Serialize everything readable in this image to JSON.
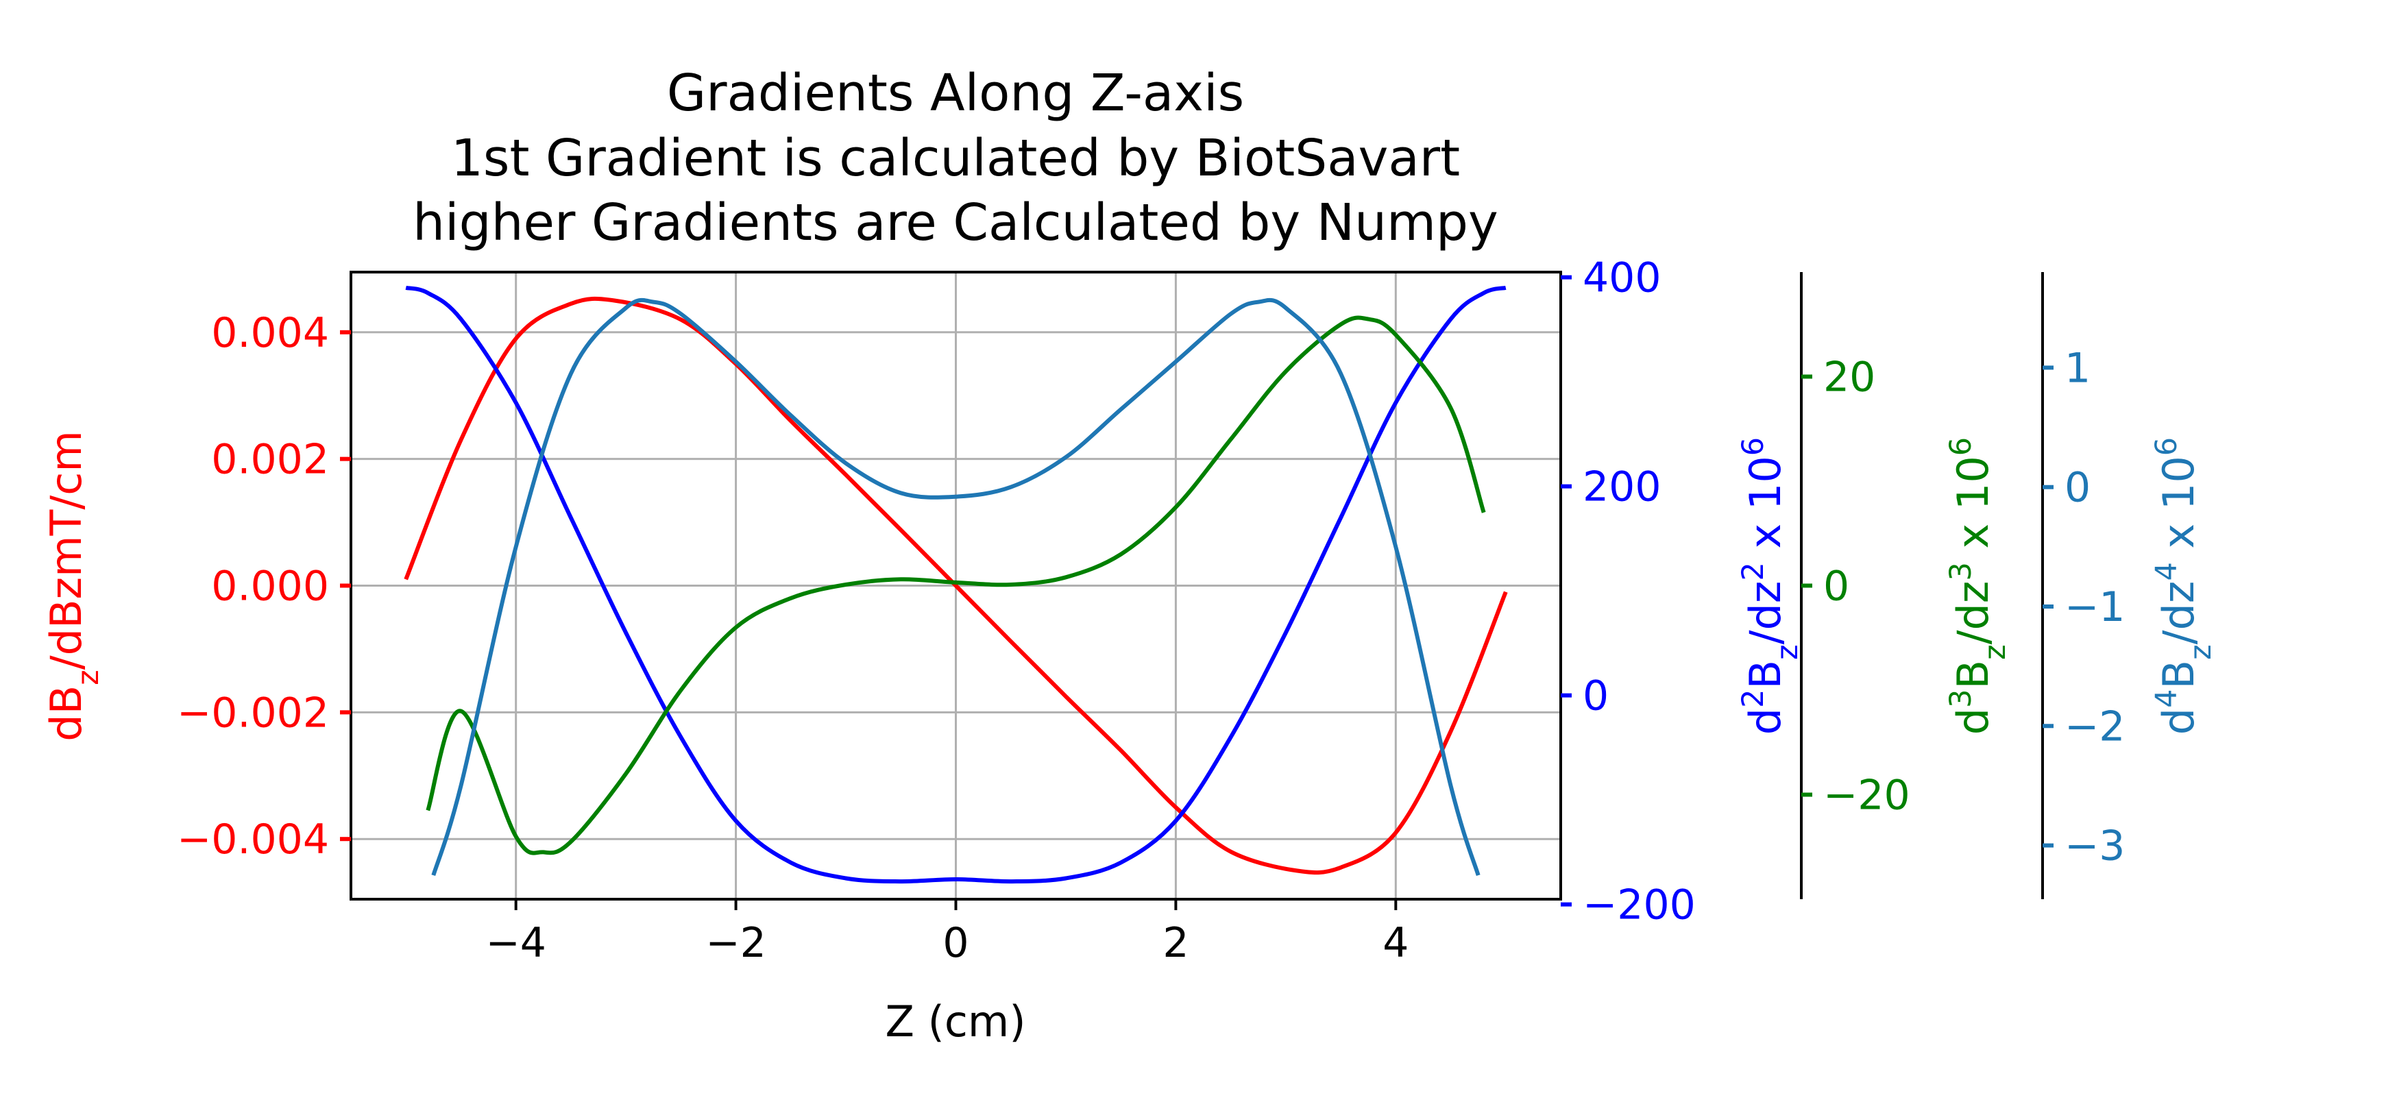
{
  "chart_data": {
    "type": "line",
    "title_lines": [
      "Gradients Along Z-axis",
      "1st Gradient is calculated by BiotSavart",
      "higher Gradients are Calculated by Numpy"
    ],
    "xlabel": "Z (cm)",
    "xlim": [
      -5.5,
      5.5
    ],
    "x_ticks": [
      -4,
      -2,
      0,
      2,
      4
    ],
    "x_tick_labels": [
      "−4",
      "−2",
      "0",
      "2",
      "4"
    ],
    "grid": true,
    "axes": {
      "left": {
        "label": {
          "pre": "dB",
          "sub": "z",
          "post": "/dBzmT/cm",
          "sup": "",
          "tail": ""
        },
        "color": "#ff0000",
        "ylim": [
          -0.00495,
          0.00495
        ],
        "ticks": [
          -0.004,
          -0.002,
          0.0,
          0.002,
          0.004
        ],
        "tick_labels": [
          "−0.004",
          "−0.002",
          "0.000",
          "0.002",
          "0.004"
        ]
      },
      "right1": {
        "label": {
          "pre": "d",
          "sup": "2",
          "mid": "B",
          "sub": "z",
          "post": "/dz",
          "sup2": "2",
          "tail": "  x 10",
          "sup3": "6"
        },
        "color": "#0000ff",
        "ylim": [
          -195,
          405
        ],
        "ticks": [
          -200,
          0,
          200,
          400
        ],
        "tick_labels": [
          "−200",
          "0",
          "200",
          "400"
        ]
      },
      "right2": {
        "label": {
          "pre": "d",
          "sup": "3",
          "mid": "B",
          "sub": "z",
          "post": "/dz",
          "sup2": "3",
          "tail": "  x 10",
          "sup3": "6"
        },
        "color": "#008000",
        "ylim": [
          -30,
          30
        ],
        "ticks": [
          -20,
          0,
          20
        ],
        "tick_labels": [
          "−20",
          "0",
          "20"
        ]
      },
      "right3": {
        "label": {
          "pre": "d",
          "sup": "4",
          "mid": "B",
          "sub": "z",
          "post": "/dz",
          "sup2": "4",
          "tail": "  x 10",
          "sup3": "6"
        },
        "color": "#1f77b4",
        "ylim": [
          -3.45,
          1.8
        ],
        "ticks": [
          -3,
          -2,
          -1,
          0,
          1
        ],
        "tick_labels": [
          "−3",
          "−2",
          "−1",
          "0",
          "1"
        ]
      }
    },
    "series": [
      {
        "axis": "left",
        "color": "#ff0000",
        "x": [
          -5.0,
          -4.5,
          -4.0,
          -3.5,
          -3.1,
          -2.5,
          -2.0,
          -1.5,
          -1.0,
          -0.5,
          0.0,
          0.5,
          1.0,
          1.5,
          2.0,
          2.5,
          3.1,
          3.5,
          4.0,
          4.5,
          5.0
        ],
        "y": [
          0.0001,
          0.0023,
          0.0039,
          0.00445,
          0.0045,
          0.0042,
          0.0035,
          0.0026,
          0.00175,
          0.00088,
          0.0,
          -0.00088,
          -0.00175,
          -0.0026,
          -0.0035,
          -0.0042,
          -0.0045,
          -0.00445,
          -0.0039,
          -0.0023,
          -0.0001
        ]
      },
      {
        "axis": "right1",
        "color": "#0000ff",
        "x": [
          -5.0,
          -4.8,
          -4.5,
          -4.0,
          -3.5,
          -3.0,
          -2.5,
          -2.0,
          -1.5,
          -1.0,
          -0.5,
          0.0,
          0.5,
          1.0,
          1.5,
          2.0,
          2.5,
          3.0,
          3.5,
          4.0,
          4.5,
          4.8,
          5.0
        ],
        "y": [
          390,
          385,
          360,
          280,
          170,
          60,
          -40,
          -120,
          -160,
          -175,
          -178,
          -176,
          -178,
          -175,
          -160,
          -120,
          -40,
          60,
          170,
          280,
          360,
          385,
          390
        ]
      },
      {
        "axis": "right2",
        "color": "#008000",
        "x": [
          -4.8,
          -4.5,
          -4.0,
          -3.75,
          -3.5,
          -3.0,
          -2.5,
          -2.0,
          -1.5,
          -1.0,
          -0.5,
          0.0,
          0.5,
          1.0,
          1.5,
          2.0,
          2.5,
          3.0,
          3.5,
          3.75,
          4.0,
          4.5,
          4.8
        ],
        "y": [
          -21.5,
          -12,
          -24,
          -25.5,
          -24.5,
          -18,
          -10,
          -4,
          -1.2,
          0.1,
          0.6,
          0.3,
          0.1,
          0.8,
          3,
          7.5,
          14,
          20.5,
          25,
          25.5,
          24,
          17,
          7
        ]
      },
      {
        "axis": "right3",
        "color": "#1f77b4",
        "x": [
          -4.75,
          -4.5,
          -4.0,
          -3.5,
          -3.0,
          -2.75,
          -2.5,
          -2.0,
          -1.5,
          -1.0,
          -0.5,
          0.0,
          0.5,
          1.0,
          1.5,
          2.0,
          2.5,
          2.75,
          3.0,
          3.5,
          4.0,
          4.5,
          4.75
        ],
        "y": [
          -3.25,
          -2.5,
          -0.5,
          0.95,
          1.5,
          1.55,
          1.45,
          1.05,
          0.6,
          0.2,
          -0.05,
          -0.08,
          0.0,
          0.25,
          0.65,
          1.05,
          1.45,
          1.55,
          1.5,
          0.95,
          -0.5,
          -2.5,
          -3.25
        ]
      }
    ]
  }
}
